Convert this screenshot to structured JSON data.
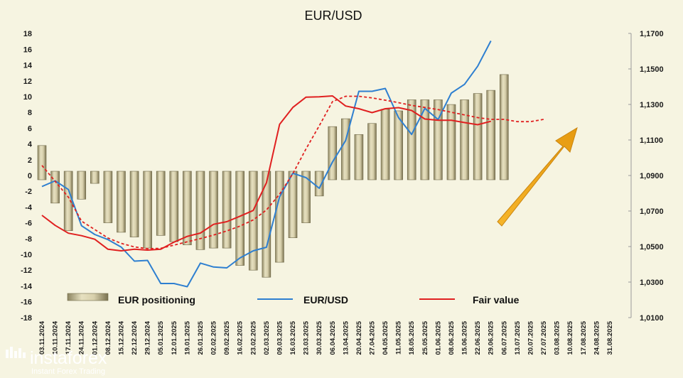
{
  "chart_data": {
    "type": "bar",
    "title": "EUR/USD",
    "x_labels": [
      "03.11.2024",
      "10.11.2024",
      "17.11.2024",
      "24.11.2024",
      "01.12.2024",
      "08.12.2024",
      "15.12.2024",
      "22.12.2024",
      "29.12.2024",
      "05.01.2025",
      "12.01.2025",
      "19.01.2025",
      "26.01.2025",
      "02.02.2025",
      "09.02.2025",
      "16.02.2025",
      "23.02.2025",
      "02.03.2025",
      "09.03.2025",
      "16.03.2025",
      "23.03.2025",
      "30.03.2025",
      "06.04.2025",
      "13.04.2025",
      "20.04.2025",
      "27.04.2025",
      "04.05.2025",
      "11.05.2025",
      "18.05.2025",
      "25.05.2025",
      "01.06.2025",
      "08.06.2025",
      "15.06.2025",
      "22.06.2025",
      "29.06.2025",
      "06.07.2025",
      "13.07.2025",
      "20.07.2025",
      "27.07.2025",
      "03.08.2025",
      "10.08.2025",
      "17.08.2025",
      "24.08.2025",
      "31.08.2025"
    ],
    "y_left_ticks": [
      "18",
      "16",
      "14",
      "12",
      "10",
      "8",
      "6",
      "4",
      "2",
      "0",
      "-2",
      "-4",
      "-6",
      "-8",
      "-10",
      "-12",
      "-14",
      "-16",
      "-18"
    ],
    "y_right_ticks": [
      "1,1700",
      "1,1500",
      "1,1300",
      "1,1100",
      "1,0900",
      "1,0700",
      "1,0500",
      "1,0300",
      "1,0100"
    ],
    "ylim_left": [
      -18,
      18
    ],
    "ylim_right": [
      1.01,
      1.17
    ],
    "grid": false,
    "series": [
      {
        "name": "EUR positioning",
        "type": "bar",
        "axis": "left",
        "color": "#c8c19c",
        "values": [
          3.8,
          -3.5,
          -7.0,
          -3.0,
          -1.0,
          -6.0,
          -7.2,
          -7.8,
          -9.2,
          -7.6,
          -8.4,
          -8.8,
          -9.4,
          -9.2,
          -9.2,
          -11.4,
          -12.0,
          -12.9,
          -11.0,
          -7.9,
          -6.0,
          -2.6,
          6.2,
          7.2,
          5.2,
          6.6,
          8.4,
          8.2,
          9.6,
          9.6,
          9.6,
          9.0,
          9.6,
          10.4,
          10.8,
          12.8
        ]
      },
      {
        "name": "EUR/USD",
        "type": "line",
        "axis": "right",
        "color": "#2e7fd0",
        "values": [
          1.0838,
          1.087,
          1.0821,
          1.0617,
          1.0568,
          1.0539,
          1.0497,
          1.0418,
          1.0422,
          1.0292,
          1.0292,
          1.0274,
          1.0407,
          1.0385,
          1.038,
          1.0436,
          1.0476,
          1.0496,
          1.078,
          1.0913,
          1.0888,
          1.0828,
          1.0976,
          1.1097,
          1.1374,
          1.1374,
          1.139,
          1.1226,
          1.1131,
          1.1278,
          1.1215,
          1.1364,
          1.1413,
          1.1515,
          1.1658
        ]
      },
      {
        "name": "Fair value",
        "type": "line",
        "axis": "right",
        "color": "#e02020",
        "values": [
          1.0676,
          1.0619,
          1.0575,
          1.0561,
          1.0541,
          1.0485,
          1.0476,
          1.0485,
          1.048,
          1.0485,
          1.0525,
          1.0557,
          1.0576,
          1.0625,
          1.064,
          1.0671,
          1.0703,
          1.0859,
          1.1188,
          1.1283,
          1.1341,
          1.1343,
          1.1348,
          1.1291,
          1.1276,
          1.1254,
          1.1276,
          1.1282,
          1.1266,
          1.1218,
          1.1211,
          1.1211,
          1.1198,
          1.1186,
          1.1205
        ]
      },
      {
        "name": "",
        "type": "dashed-line",
        "axis": "right",
        "color": "#e02020",
        "values": [
          1.0957,
          1.0867,
          1.0778,
          1.0643,
          1.0596,
          1.0548,
          1.0518,
          1.0498,
          1.0488,
          1.049,
          1.0508,
          1.0527,
          1.0545,
          1.0565,
          1.0588,
          1.0615,
          1.065,
          1.0706,
          1.0795,
          1.091,
          1.105,
          1.118,
          1.1316,
          1.1346,
          1.1346,
          1.1337,
          1.1324,
          1.131,
          1.1295,
          1.1283,
          1.1271,
          1.1256,
          1.1241,
          1.1226,
          1.1216,
          1.1216,
          1.1203,
          1.1203,
          1.1216
        ]
      }
    ],
    "legend": [
      "EUR positioning",
      "EUR/USD",
      "Fair value"
    ],
    "legend_position": "bottom",
    "annotation": {
      "type": "arrow",
      "color": "#f0a818",
      "direction": "up-right"
    }
  },
  "brand": {
    "name": "instaforex",
    "tagline": "Instant Forex Trading"
  }
}
